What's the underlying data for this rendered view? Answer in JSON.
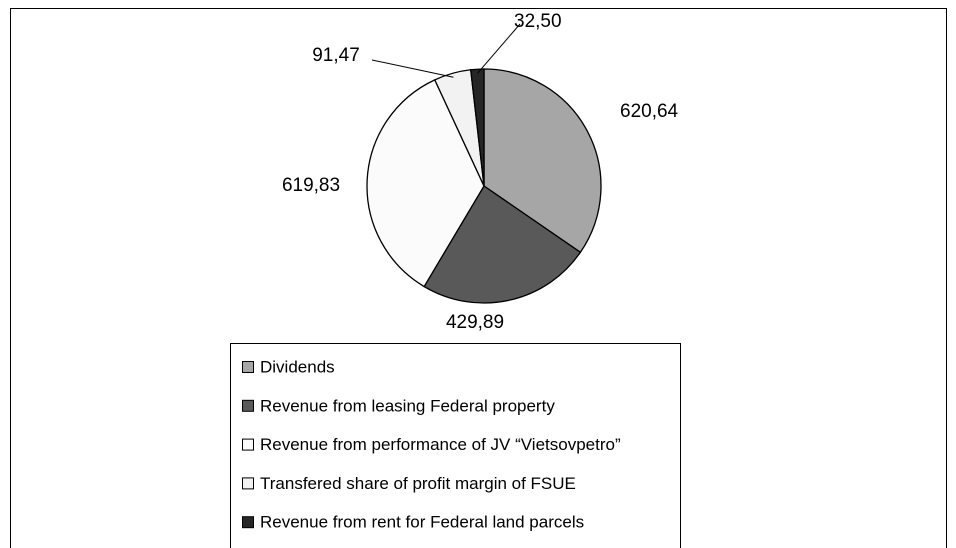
{
  "chart_data": {
    "type": "pie",
    "categories": [
      "Dividends",
      "Revenue from leasing Federal property",
      "Revenue from performance of JV “Vietsovpetro”",
      "Transfered share of profit margin of FSUE",
      "Revenue from rent for Federal land parcels"
    ],
    "values": [
      620.64,
      429.89,
      619.83,
      91.47,
      32.5
    ],
    "value_labels": [
      "620,64",
      "429,89",
      "619,83",
      "91,47",
      "32,50"
    ],
    "colors": [
      "#a6a6a6",
      "#595959",
      "#fbfbfb",
      "#f2f2f2",
      "#262626"
    ],
    "legend": "bottom"
  }
}
